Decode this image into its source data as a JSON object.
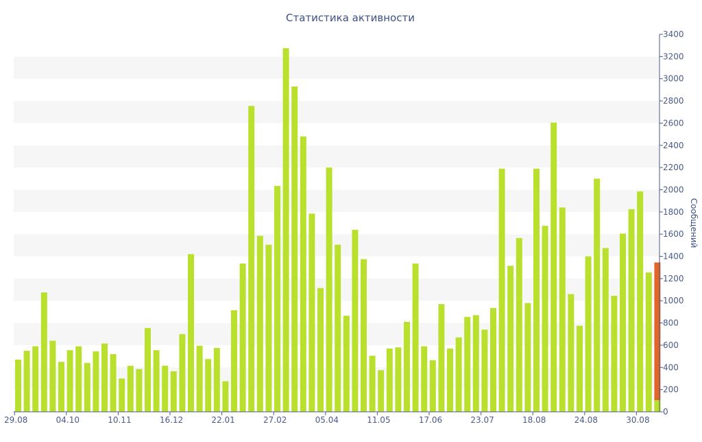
{
  "chart_data": {
    "type": "bar",
    "title": "Статистика активности",
    "ylabel": "Сообщений",
    "ylim": [
      0,
      3400
    ],
    "y_ticks": [
      0,
      200,
      400,
      600,
      800,
      1000,
      1200,
      1400,
      1600,
      1800,
      2000,
      2200,
      2400,
      2600,
      2800,
      3000,
      3200,
      3400
    ],
    "x_tick_labels": [
      {
        "label": "29.08",
        "index": 0
      },
      {
        "label": "04.10",
        "index": 6
      },
      {
        "label": "10.11",
        "index": 12
      },
      {
        "label": "16.12",
        "index": 18
      },
      {
        "label": "22.01",
        "index": 24
      },
      {
        "label": "27.02",
        "index": 30
      },
      {
        "label": "05.04",
        "index": 36
      },
      {
        "label": "11.05",
        "index": 42
      },
      {
        "label": "17.06",
        "index": 48
      },
      {
        "label": "23.07",
        "index": 54
      },
      {
        "label": "18.08",
        "index": 60
      },
      {
        "label": "24.08",
        "index": 66
      },
      {
        "label": "30.08",
        "index": 72
      }
    ],
    "y_axis_position": "right",
    "grid": "alternating horizontal bands",
    "colors": {
      "bar": "#b8e02d",
      "highlight": "#e0662a",
      "band": "#f6f6f6",
      "axis": "#4a5a8a",
      "title": "#3d4f86"
    },
    "values": [
      470,
      550,
      590,
      1075,
      640,
      450,
      555,
      590,
      440,
      545,
      615,
      520,
      300,
      415,
      385,
      755,
      555,
      415,
      365,
      700,
      1420,
      595,
      475,
      575,
      275,
      915,
      1335,
      2755,
      1585,
      1505,
      2035,
      3275,
      2930,
      2480,
      1785,
      1115,
      2200,
      1505,
      865,
      1640,
      1375,
      505,
      375,
      570,
      580,
      810,
      1335,
      590,
      465,
      970,
      570,
      670,
      855,
      870,
      740,
      935,
      2190,
      1315,
      1565,
      980,
      2190,
      1675,
      2605,
      1840,
      1060,
      775,
      1400,
      2100,
      1475,
      1045,
      1605,
      1825,
      1985,
      1255
    ],
    "last_bar": {
      "total": 1345,
      "base": 105
    }
  }
}
